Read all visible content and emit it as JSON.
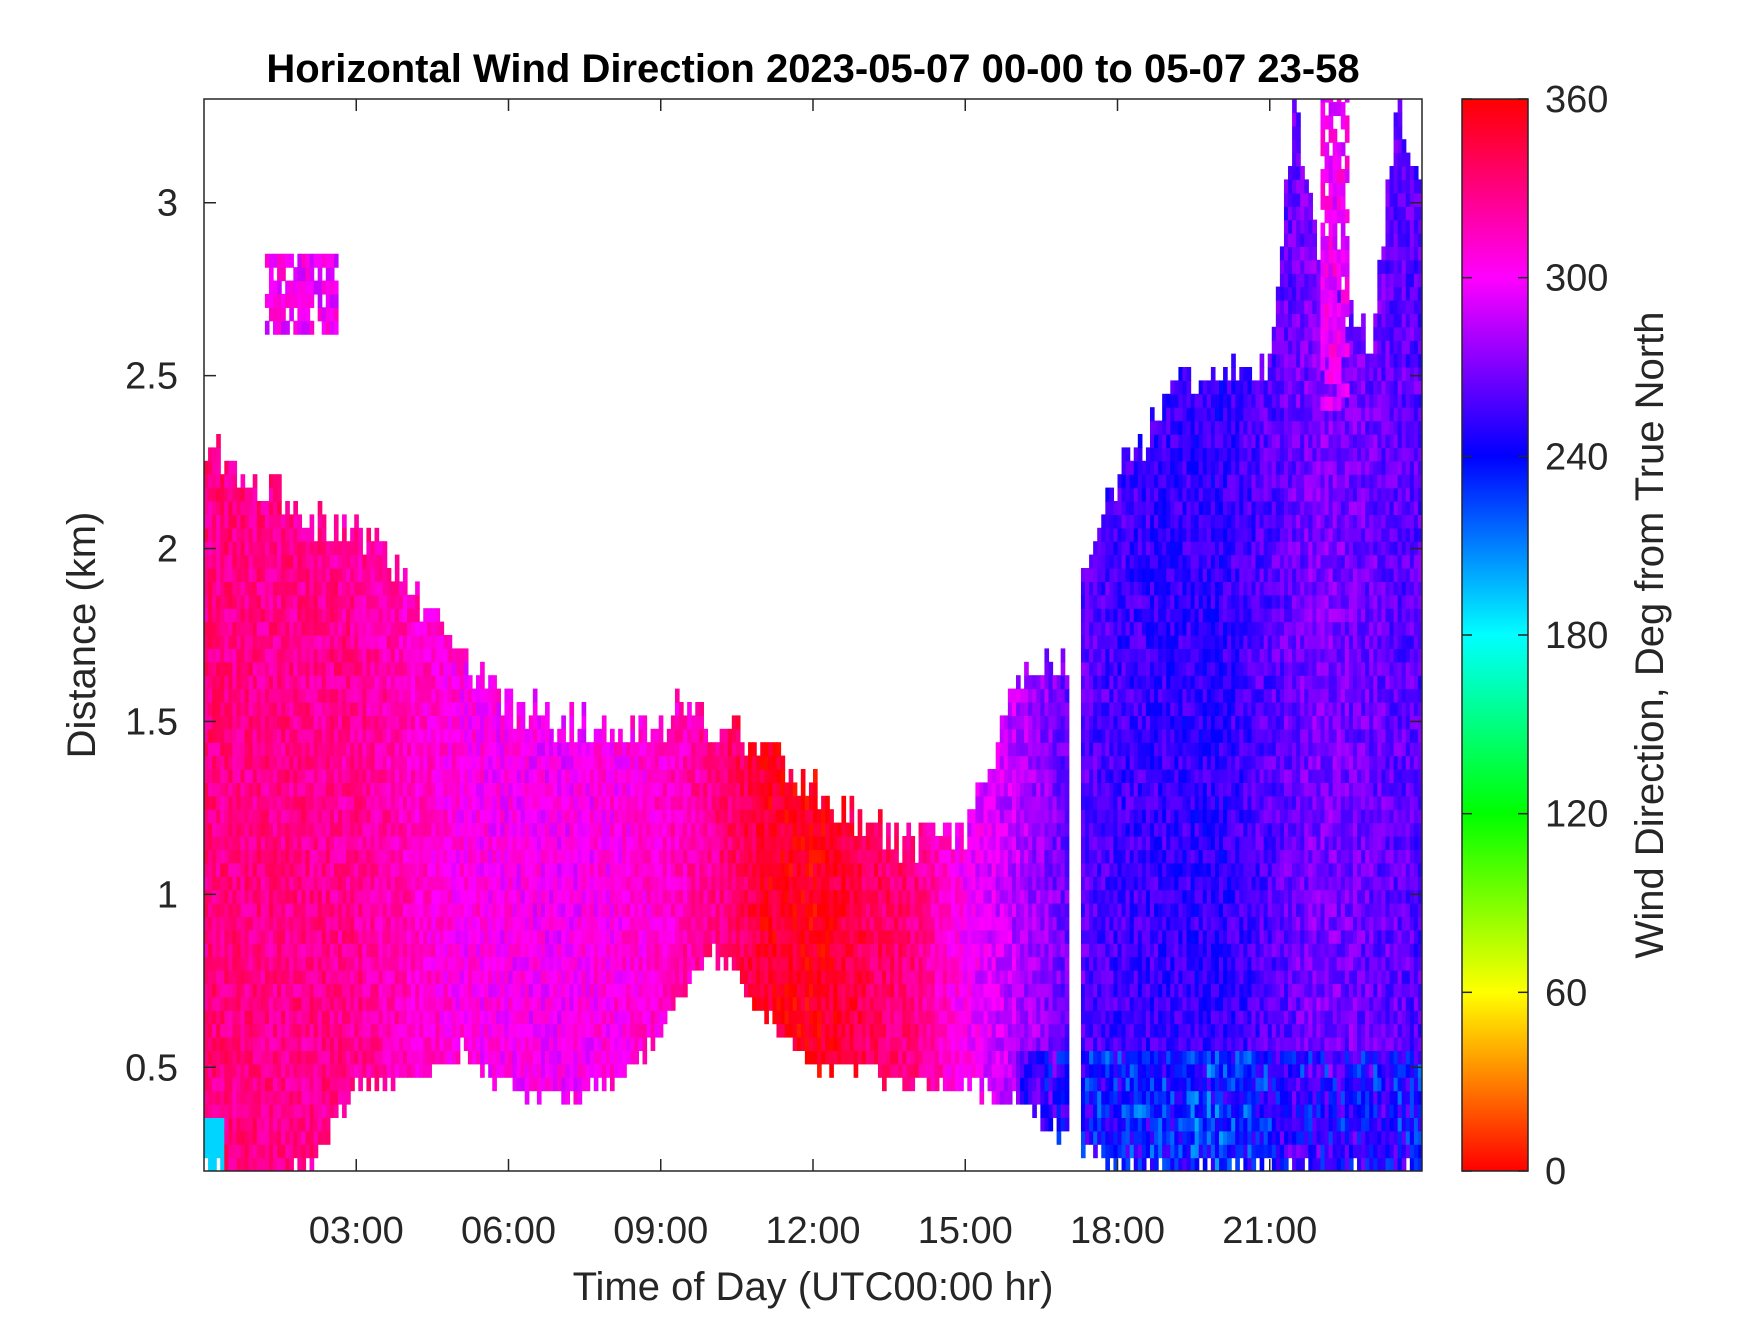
{
  "chart_data": {
    "type": "heatmap",
    "title": "Horizontal Wind Direction 2023-05-07 00-00 to 05-07 23-58",
    "xlabel": "Time of Day (UTC00:00 hr)",
    "ylabel": "Distance (km)",
    "colorbar_label": "Wind Direction, Deg from True North",
    "xlim_hours": [
      0,
      24
    ],
    "ylim_km": [
      0.2,
      3.3
    ],
    "x_tick_labels": [
      "03:00",
      "06:00",
      "09:00",
      "12:00",
      "15:00",
      "18:00",
      "21:00"
    ],
    "x_tick_hours": [
      3,
      6,
      9,
      12,
      15,
      18,
      21
    ],
    "y_tick_labels": [
      "0.5",
      "1",
      "1.5",
      "2",
      "2.5",
      "3"
    ],
    "y_ticks_km": [
      0.5,
      1,
      1.5,
      2,
      2.5,
      3
    ],
    "colorbar_tick_labels": [
      "0",
      "60",
      "120",
      "180",
      "240",
      "300",
      "360"
    ],
    "colorbar_ticks": [
      0,
      60,
      120,
      180,
      240,
      300,
      360
    ],
    "clim": [
      0,
      360
    ],
    "colormap": "hsv",
    "grid": false,
    "data_top_km_by_hour": [
      [
        0.0,
        2.3
      ],
      [
        1.0,
        2.2
      ],
      [
        2.0,
        2.1
      ],
      [
        3.0,
        2.05
      ],
      [
        4.0,
        1.9
      ],
      [
        5.0,
        1.7
      ],
      [
        6.0,
        1.55
      ],
      [
        7.0,
        1.5
      ],
      [
        8.0,
        1.48
      ],
      [
        9.0,
        1.5
      ],
      [
        9.5,
        1.55
      ],
      [
        10.0,
        1.5
      ],
      [
        11.0,
        1.42
      ],
      [
        12.0,
        1.3
      ],
      [
        13.0,
        1.2
      ],
      [
        14.0,
        1.15
      ],
      [
        15.0,
        1.2
      ],
      [
        16.0,
        1.6
      ],
      [
        17.0,
        1.7
      ],
      [
        17.5,
        2.0
      ],
      [
        18.0,
        2.2
      ],
      [
        19.0,
        2.45
      ],
      [
        20.0,
        2.5
      ],
      [
        21.0,
        2.55
      ],
      [
        21.5,
        3.3
      ],
      [
        22.0,
        2.8
      ],
      [
        23.0,
        2.6
      ],
      [
        23.5,
        3.3
      ],
      [
        24.0,
        3.0
      ]
    ],
    "data_bottom_km_by_hour": [
      [
        0.0,
        0.2
      ],
      [
        2.0,
        0.2
      ],
      [
        3.0,
        0.45
      ],
      [
        4.0,
        0.45
      ],
      [
        5.0,
        0.55
      ],
      [
        6.0,
        0.45
      ],
      [
        7.0,
        0.4
      ],
      [
        8.0,
        0.45
      ],
      [
        9.0,
        0.6
      ],
      [
        10.0,
        0.85
      ],
      [
        11.0,
        0.65
      ],
      [
        12.0,
        0.5
      ],
      [
        13.0,
        0.5
      ],
      [
        14.0,
        0.45
      ],
      [
        15.0,
        0.45
      ],
      [
        16.0,
        0.4
      ],
      [
        17.0,
        0.3
      ],
      [
        18.0,
        0.2
      ],
      [
        24.0,
        0.2
      ]
    ],
    "direction_deg_by_hour": [
      [
        0.0,
        330
      ],
      [
        3.0,
        325
      ],
      [
        5.0,
        305
      ],
      [
        7.0,
        300
      ],
      [
        9.0,
        310
      ],
      [
        10.0,
        325
      ],
      [
        11.0,
        350
      ],
      [
        12.0,
        355
      ],
      [
        13.0,
        340
      ],
      [
        14.0,
        330
      ],
      [
        15.0,
        300
      ],
      [
        16.0,
        285
      ],
      [
        17.0,
        265
      ],
      [
        18.0,
        255
      ],
      [
        20.0,
        250
      ],
      [
        22.0,
        270
      ],
      [
        23.0,
        265
      ],
      [
        24.0,
        260
      ]
    ],
    "data_gaps_hours": [
      [
        17.05,
        17.3
      ]
    ],
    "isolated_patches": [
      {
        "hours": [
          1.2,
          2.6
        ],
        "km": [
          2.62,
          2.82
        ],
        "deg": 300
      },
      {
        "hours": [
          22.0,
          22.5
        ],
        "km": [
          2.4,
          3.3
        ],
        "deg": 300
      }
    ]
  }
}
